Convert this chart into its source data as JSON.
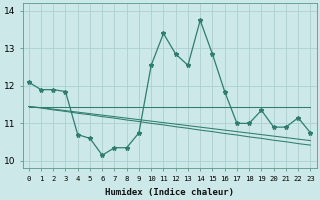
{
  "xlabel": "Humidex (Indice chaleur)",
  "background_color": "#cce8e8",
  "line_color": "#2e7d6e",
  "grid_color": "#aed0d0",
  "x_values": [
    0,
    1,
    2,
    3,
    4,
    5,
    6,
    7,
    8,
    9,
    10,
    11,
    12,
    13,
    14,
    15,
    16,
    17,
    18,
    19,
    20,
    21,
    22,
    23
  ],
  "y_main": [
    12.1,
    11.9,
    11.9,
    11.85,
    10.7,
    10.6,
    10.15,
    10.35,
    10.35,
    10.75,
    12.55,
    13.4,
    12.85,
    12.55,
    13.75,
    12.85,
    11.85,
    11.0,
    11.0,
    11.35,
    10.9,
    10.9,
    11.15,
    10.75
  ],
  "y_flat": [
    11.45,
    11.45,
    11.45,
    11.45,
    11.45,
    11.45,
    11.45,
    11.45,
    11.45,
    11.45,
    11.45,
    11.45,
    11.45,
    11.45,
    11.45,
    11.45,
    11.45,
    11.45,
    11.45,
    11.45,
    11.45,
    11.45,
    11.45,
    11.45
  ],
  "y_decline1": [
    11.45,
    11.42,
    11.38,
    11.34,
    11.3,
    11.26,
    11.22,
    11.18,
    11.14,
    11.1,
    11.06,
    11.02,
    10.98,
    10.94,
    10.9,
    10.86,
    10.82,
    10.78,
    10.74,
    10.7,
    10.66,
    10.62,
    10.58,
    10.54
  ],
  "y_decline2": [
    11.45,
    11.41,
    11.36,
    11.32,
    11.27,
    11.23,
    11.18,
    11.14,
    11.09,
    11.05,
    11.0,
    10.96,
    10.91,
    10.87,
    10.82,
    10.78,
    10.73,
    10.69,
    10.64,
    10.6,
    10.55,
    10.51,
    10.46,
    10.42
  ],
  "ylim": [
    9.8,
    14.2
  ],
  "xlim": [
    -0.5,
    23.5
  ],
  "yticks": [
    10,
    11,
    12,
    13,
    14
  ],
  "xtick_labels": [
    "0",
    "1",
    "2",
    "3",
    "4",
    "5",
    "6",
    "7",
    "8",
    "9",
    "10",
    "11",
    "12",
    "13",
    "14",
    "15",
    "16",
    "17",
    "18",
    "19",
    "20",
    "21",
    "22",
    "23"
  ]
}
